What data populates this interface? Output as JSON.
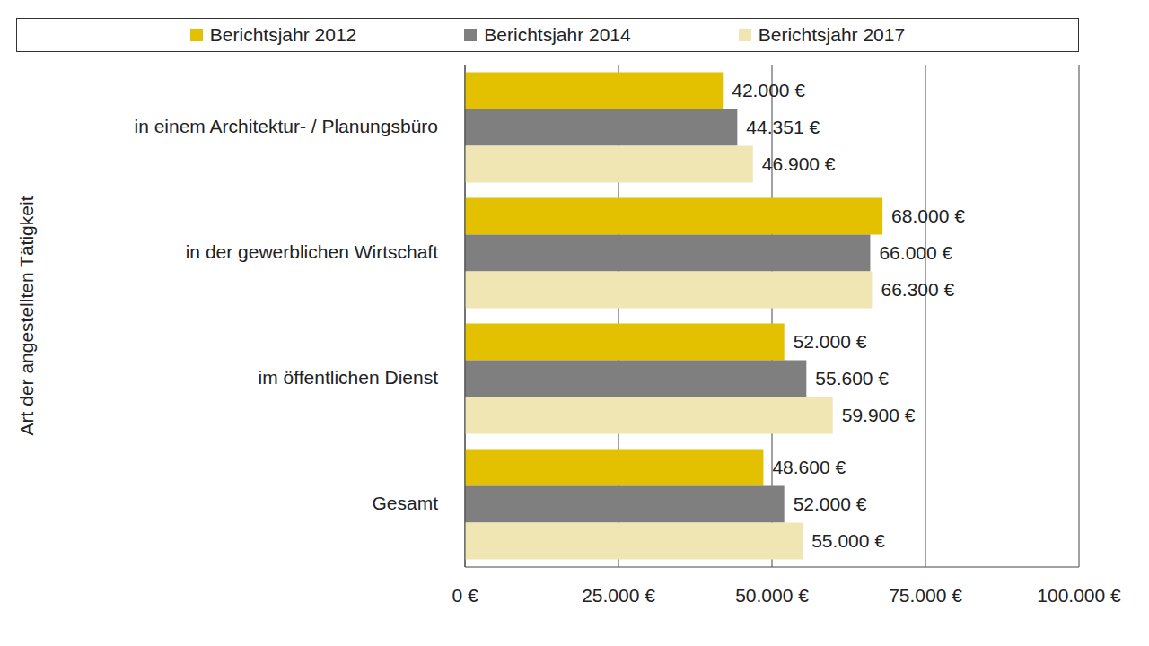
{
  "chart_data": {
    "type": "bar",
    "orientation": "horizontal",
    "y_label": "Art der angestellten Tätigkeit",
    "categories": [
      "in einem Architektur- / Planungsbüro",
      "in der gewerblichen Wirtschaft",
      "im öffentlichen Dienst",
      "Gesamt"
    ],
    "series": [
      {
        "name": "Berichtsjahr 2012",
        "color": "#e3c000",
        "values": [
          42000,
          68000,
          52000,
          48600
        ],
        "value_labels": [
          "42.000 €",
          "68.000 €",
          "52.000 €",
          "48.600 €"
        ]
      },
      {
        "name": "Berichtsjahr 2014",
        "color": "#7f7f7f",
        "values": [
          44351,
          66000,
          55600,
          52000
        ],
        "value_labels": [
          "44.351 €",
          "66.000 €",
          "55.600 €",
          "52.000 €"
        ]
      },
      {
        "name": "Berichtsjahr 2017",
        "color": "#f0e6b4",
        "values": [
          46900,
          66300,
          59900,
          55000
        ],
        "value_labels": [
          "46.900 €",
          "66.300 €",
          "59.900 €",
          "55.000 €"
        ]
      }
    ],
    "xlim": [
      0,
      100000
    ],
    "xticks": [
      {
        "value": 0,
        "label": "0 €"
      },
      {
        "value": 25000,
        "label": "25.000 €"
      },
      {
        "value": 50000,
        "label": "50.000 €"
      },
      {
        "value": 75000,
        "label": "75.000 €"
      },
      {
        "value": 100000,
        "label": "100.000 €"
      }
    ],
    "grid": true,
    "legend": "top",
    "data_labels": true
  }
}
